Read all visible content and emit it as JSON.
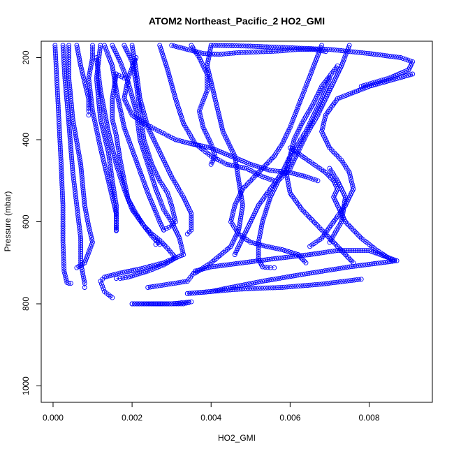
{
  "chart_data": {
    "type": "scatter",
    "title": "ATOM2 Northeast_Pacific_2 HO2_GMI",
    "xlabel": "HO2_GMI",
    "ylabel": "Pressure (mbar)",
    "xlim": [
      -0.0003,
      0.0096
    ],
    "ylim": [
      1040,
      160
    ],
    "y_reversed": true,
    "x_ticks": [
      0.0,
      0.002,
      0.004,
      0.006,
      0.008
    ],
    "x_tick_labels": [
      "0.000",
      "0.002",
      "0.004",
      "0.006",
      "0.008"
    ],
    "y_ticks": [
      200,
      400,
      600,
      800,
      1000
    ],
    "y_tick_labels": [
      "200",
      "400",
      "600",
      "800",
      "1000"
    ],
    "marker": "open-circle",
    "connected": true,
    "color": "#0000ff",
    "grid": false,
    "legend": "none",
    "series": [
      {
        "x": [
          5e-05,
          0.00012,
          0.0002,
          0.00025,
          0.00025,
          0.00028,
          0.00035,
          0.0004,
          0.00045
        ],
        "y": [
          170,
          300,
          450,
          560,
          650,
          720,
          748,
          750,
          750
        ]
      },
      {
        "x": [
          0.00025,
          0.0003,
          0.0004,
          0.0005,
          0.0006,
          0.0007,
          0.0007,
          0.0008,
          0.0008
        ],
        "y": [
          170,
          250,
          360,
          480,
          560,
          640,
          700,
          750,
          760
        ]
      },
      {
        "x": [
          0.0004,
          0.0004,
          0.0005,
          0.0007,
          0.0008,
          0.0009,
          0.001,
          0.0008,
          0.0006
        ],
        "y": [
          170,
          250,
          350,
          460,
          560,
          610,
          650,
          700,
          712
        ]
      },
      {
        "x": [
          0.0006,
          0.0007,
          0.0008,
          0.0009,
          0.0009,
          0.0009
        ],
        "y": [
          170,
          220,
          260,
          300,
          330,
          340
        ]
      },
      {
        "x": [
          0.001,
          0.001,
          0.0009,
          0.001,
          0.0012,
          0.0014,
          0.0016,
          0.0016
        ],
        "y": [
          170,
          200,
          250,
          330,
          420,
          500,
          580,
          622
        ]
      },
      {
        "x": [
          0.0012,
          0.0011,
          0.0012,
          0.0014,
          0.0015,
          0.0016,
          0.0016
        ],
        "y": [
          170,
          250,
          350,
          430,
          500,
          560,
          620
        ]
      },
      {
        "x": [
          0.0011,
          0.0012,
          0.0014,
          0.0016,
          0.0018,
          0.002,
          0.0023,
          0.0025,
          0.0027,
          0.0029,
          0.0031,
          0.0028,
          0.0024,
          0.0019,
          0.0017,
          0.0016
        ],
        "y": [
          200,
          280,
          380,
          460,
          520,
          570,
          610,
          630,
          645,
          665,
          688,
          705,
          720,
          735,
          738,
          738
        ]
      },
      {
        "x": [
          0.0013,
          0.0015,
          0.0016,
          0.0018,
          0.0021,
          0.0024,
          0.0027,
          0.0028
        ],
        "y": [
          170,
          220,
          280,
          370,
          450,
          530,
          600,
          620
        ]
      },
      {
        "x": [
          0.0018,
          0.0016,
          0.0015,
          0.0015,
          0.0016,
          0.0017,
          0.0018,
          0.0019,
          0.0021,
          0.0023,
          0.0025,
          0.0027,
          0.0026
        ],
        "y": [
          250,
          240,
          300,
          350,
          390,
          450,
          500,
          545,
          580,
          610,
          635,
          655,
          655
        ]
      },
      {
        "x": [
          0.0015,
          0.0017,
          0.0019,
          0.0021,
          0.0022,
          0.0024,
          0.0026,
          0.0028,
          0.003,
          0.0031,
          0.0032,
          0.0033,
          0.0028,
          0.0022,
          0.0017,
          0.0013,
          0.0012,
          0.0013,
          0.0015
        ],
        "y": [
          170,
          210,
          260,
          330,
          400,
          460,
          520,
          570,
          600,
          620,
          640,
          680,
          700,
          715,
          725,
          735,
          745,
          770,
          785
        ]
      },
      {
        "x": [
          0.0018,
          0.002,
          0.0021,
          0.0022,
          0.0023,
          0.0025,
          0.0027,
          0.0029,
          0.003,
          0.0031,
          0.003,
          0.0028
        ],
        "y": [
          170,
          210,
          260,
          330,
          400,
          460,
          500,
          530,
          560,
          600,
          610,
          620
        ]
      },
      {
        "x": [
          0.002,
          0.0021,
          0.0022,
          0.0024,
          0.0027,
          0.003,
          0.0033,
          0.0035,
          0.0035,
          0.0034
        ],
        "y": [
          170,
          230,
          300,
          370,
          430,
          490,
          540,
          580,
          620,
          630
        ]
      },
      {
        "x": [
          0.0021,
          0.0019,
          0.0018,
          0.002,
          0.0023,
          0.0027,
          0.0031,
          0.0035,
          0.004,
          0.0045,
          0.005,
          0.0055,
          0.006,
          0.0064,
          0.0067
        ],
        "y": [
          200,
          250,
          300,
          340,
          360,
          380,
          400,
          410,
          420,
          440,
          460,
          475,
          480,
          490,
          500
        ]
      },
      {
        "x": [
          0.002,
          0.0026,
          0.003,
          0.0033,
          0.0035,
          0.003,
          0.0025,
          0.002
        ],
        "y": [
          800,
          800,
          800,
          800,
          795,
          800,
          800,
          800
        ]
      },
      {
        "x": [
          0.0024,
          0.0034,
          0.0036,
          0.004,
          0.0048,
          0.0056,
          0.0065,
          0.0072,
          0.008,
          0.0087,
          0.0083,
          0.0075,
          0.0062,
          0.0053,
          0.0045,
          0.004,
          0.0034
        ],
        "y": [
          760,
          745,
          720,
          710,
          700,
          690,
          680,
          670,
          670,
          695,
          700,
          710,
          730,
          745,
          760,
          770,
          775
        ]
      },
      {
        "x": [
          0.0034,
          0.004,
          0.0046,
          0.0052,
          0.0058,
          0.0068,
          0.0078
        ],
        "y": [
          775,
          770,
          765,
          762,
          760,
          752,
          740
        ]
      },
      {
        "x": [
          0.0027,
          0.0029,
          0.0031,
          0.0033,
          0.0036,
          0.004,
          0.0044,
          0.0049,
          0.0053,
          0.0056
        ],
        "y": [
          170,
          230,
          300,
          360,
          410,
          440,
          460,
          470,
          490,
          500
        ]
      },
      {
        "x": [
          0.0035,
          0.0037,
          0.0039,
          0.0039,
          0.0037,
          0.0038,
          0.004,
          0.0041,
          0.004
        ],
        "y": [
          170,
          200,
          240,
          280,
          330,
          370,
          410,
          440,
          460
        ]
      },
      {
        "x": [
          0.004,
          0.0039,
          0.0041,
          0.0043,
          0.0046,
          0.0047,
          0.0048,
          0.0047,
          0.0045,
          0.004,
          0.0036
        ],
        "y": [
          170,
          220,
          300,
          380,
          440,
          500,
          560,
          620,
          660,
          700,
          725
        ]
      },
      {
        "x": [
          0.003,
          0.0034,
          0.0038,
          0.0042,
          0.0047,
          0.0052,
          0.0057,
          0.0062,
          0.0066,
          0.0069
        ],
        "y": [
          170,
          180,
          190,
          192,
          188,
          186,
          184,
          180,
          180,
          185
        ]
      },
      {
        "x": [
          0.004,
          0.005,
          0.006,
          0.007,
          0.008,
          0.0088,
          0.0091,
          0.009,
          0.0085,
          0.0078
        ],
        "y": [
          170,
          172,
          176,
          180,
          190,
          200,
          210,
          230,
          250,
          270
        ]
      },
      {
        "x": [
          0.0075,
          0.0073,
          0.007,
          0.0067,
          0.0064,
          0.0062,
          0.006,
          0.0057,
          0.0055,
          0.0053,
          0.0052,
          0.0052,
          0.0053,
          0.0055,
          0.0056
        ],
        "y": [
          170,
          220,
          280,
          340,
          390,
          430,
          470,
          500,
          540,
          600,
          650,
          690,
          710,
          712,
          712
        ]
      },
      {
        "x": [
          0.0068,
          0.0066,
          0.0064,
          0.0062,
          0.006,
          0.0058,
          0.0056,
          0.0054,
          0.0052,
          0.0048,
          0.0046,
          0.0045,
          0.0047,
          0.005,
          0.0054,
          0.0058,
          0.0062,
          0.0064
        ],
        "y": [
          170,
          220,
          270,
          320,
          370,
          410,
          440,
          460,
          480,
          520,
          560,
          600,
          630,
          650,
          660,
          668,
          680,
          700
        ]
      },
      {
        "x": [
          0.007,
          0.0068,
          0.0066,
          0.0064,
          0.0062,
          0.006,
          0.0058,
          0.0055,
          0.0052,
          0.005,
          0.0048,
          0.0046
        ],
        "y": [
          250,
          300,
          340,
          380,
          410,
          440,
          480,
          520,
          560,
          600,
          640,
          680
        ]
      },
      {
        "x": [
          0.0072,
          0.0068,
          0.0066,
          0.0063,
          0.0061,
          0.006,
          0.0059,
          0.006,
          0.0063,
          0.0067,
          0.007,
          0.0072,
          0.0074,
          0.0076
        ],
        "y": [
          220,
          270,
          310,
          360,
          400,
          440,
          480,
          530,
          570,
          610,
          640,
          660,
          680,
          700
        ]
      },
      {
        "x": [
          0.0091,
          0.008,
          0.0072,
          0.0069,
          0.0068,
          0.007,
          0.0073,
          0.0075,
          0.0076,
          0.0074,
          0.0071,
          0.0068,
          0.0065
        ],
        "y": [
          240,
          270,
          300,
          340,
          380,
          420,
          450,
          480,
          520,
          560,
          600,
          640,
          660
        ]
      },
      {
        "x": [
          0.006,
          0.0063,
          0.0066,
          0.0069,
          0.0071,
          0.0072,
          0.0071,
          0.0072,
          0.0074,
          0.0078,
          0.0082,
          0.0086
        ],
        "y": [
          420,
          440,
          460,
          480,
          500,
          520,
          540,
          560,
          600,
          640,
          670,
          695
        ]
      },
      {
        "x": [
          0.007,
          0.0072,
          0.0074,
          0.0073,
          0.007
        ],
        "y": [
          470,
          500,
          540,
          600,
          650
        ]
      }
    ]
  }
}
